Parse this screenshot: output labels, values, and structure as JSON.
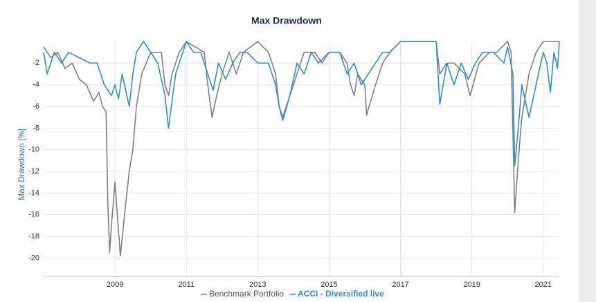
{
  "chart_data": {
    "type": "line",
    "title": "Max Drawdown",
    "y_label": "Max Drawdown [%]",
    "xlim": [
      2007.0,
      2021.45
    ],
    "xticks": [
      2009,
      2011,
      2013,
      2015,
      2017,
      2019,
      2021
    ],
    "ylim": [
      -21.7,
      0
    ],
    "yticks": [
      -20,
      -18,
      -16,
      -14,
      -12,
      -10,
      -8,
      -6,
      -4,
      -2
    ],
    "grid": true,
    "legend": "bottom",
    "series": [
      {
        "name": "Benchmark Portfolio",
        "color": "#7f7f7f",
        "x": [
          2007.0,
          2007.2,
          2007.4,
          2007.6,
          2007.8,
          2008.0,
          2008.2,
          2008.4,
          2008.55,
          2008.65,
          2008.75,
          2008.8,
          2008.85,
          2008.9,
          2009.0,
          2009.15,
          2009.3,
          2009.4,
          2009.5,
          2009.6,
          2009.75,
          2010.0,
          2010.3,
          2010.4,
          2010.5,
          2010.6,
          2010.8,
          2011.0,
          2011.5,
          2011.6,
          2011.72,
          2011.85,
          2012.0,
          2012.2,
          2012.4,
          2012.6,
          2013.0,
          2013.3,
          2013.5,
          2013.6,
          2013.7,
          2013.9,
          2014.1,
          2014.3,
          2014.6,
          2014.8,
          2015.0,
          2015.3,
          2015.5,
          2015.6,
          2015.7,
          2015.8,
          2016.0,
          2016.05,
          2016.3,
          2016.5,
          2016.7,
          2017.0,
          2018.0,
          2018.1,
          2018.3,
          2018.5,
          2018.8,
          2018.95,
          2019.2,
          2019.5,
          2019.7,
          2020.0,
          2020.1,
          2020.2,
          2020.3,
          2020.4,
          2020.6,
          2020.8,
          2021.0,
          2021.45
        ],
        "values": [
          -0.5,
          -1.5,
          -1,
          -2.5,
          -2,
          -3.5,
          -4,
          -5.5,
          -4.7,
          -6,
          -6.5,
          -15,
          -19.5,
          -17,
          -13,
          -19.8,
          -15,
          -12,
          -10,
          -6,
          -3,
          -1,
          -1,
          -4,
          -5,
          -3,
          -1,
          0,
          -1,
          -4,
          -7,
          -5,
          -3,
          -1,
          -3,
          -1,
          0,
          -1,
          -3,
          -6,
          -7,
          -5,
          -3,
          -1,
          -1,
          -2,
          -1,
          -1,
          -2,
          -4,
          -5,
          -3,
          -4,
          -6.8,
          -4,
          -2,
          -1,
          0,
          0,
          -3,
          -2,
          -2,
          -3,
          -5,
          -2,
          -1,
          -1,
          0,
          -1,
          -15.8,
          -11,
          -7,
          -3,
          -1,
          0,
          0
        ]
      },
      {
        "name": "ACCI - Diversified live",
        "color": "#2b8fd0",
        "x": [
          2007.0,
          2007.1,
          2007.3,
          2007.5,
          2007.7,
          2008.0,
          2008.3,
          2008.5,
          2008.7,
          2008.9,
          2009.0,
          2009.1,
          2009.2,
          2009.4,
          2009.5,
          2009.6,
          2009.8,
          2010.0,
          2010.2,
          2010.4,
          2010.5,
          2010.7,
          2010.9,
          2011.0,
          2011.2,
          2011.4,
          2011.6,
          2011.75,
          2011.9,
          2012.1,
          2012.3,
          2012.5,
          2012.7,
          2013.0,
          2013.3,
          2013.5,
          2013.6,
          2013.7,
          2013.9,
          2014.1,
          2014.3,
          2014.5,
          2014.7,
          2015.0,
          2015.3,
          2015.5,
          2015.7,
          2015.9,
          2016.1,
          2016.3,
          2016.5,
          2016.7,
          2017.0,
          2018.0,
          2018.1,
          2018.3,
          2018.5,
          2018.7,
          2018.9,
          2019.1,
          2019.3,
          2019.6,
          2019.9,
          2020.0,
          2020.15,
          2020.2,
          2020.3,
          2020.4,
          2020.6,
          2020.8,
          2021.0,
          2021.1,
          2021.2,
          2021.3,
          2021.4,
          2021.45
        ],
        "values": [
          -1,
          -3,
          -1,
          -2,
          -1,
          -1.5,
          -2,
          -2,
          -4,
          -5,
          -4,
          -5.3,
          -3,
          -6,
          -3,
          -1,
          0,
          -1,
          -2,
          -5,
          -8,
          -3,
          -1,
          0,
          -1,
          -1,
          -3,
          -4.5,
          -2,
          -3.5,
          -2,
          -1,
          -1,
          -2,
          -2,
          -4,
          -6,
          -7.3,
          -5,
          -2,
          -3,
          -1,
          -2,
          -1,
          -1,
          -3,
          -2,
          -4,
          -3,
          -2,
          -1,
          -1,
          0,
          0,
          -5.8,
          -2,
          -4,
          -2,
          -3.5,
          -2,
          -1,
          -1,
          -2,
          -0.5,
          -3,
          -11.5,
          -8,
          -4,
          -7,
          -4,
          -1,
          -2,
          -4.7,
          -1,
          -2.5,
          0
        ]
      }
    ]
  }
}
